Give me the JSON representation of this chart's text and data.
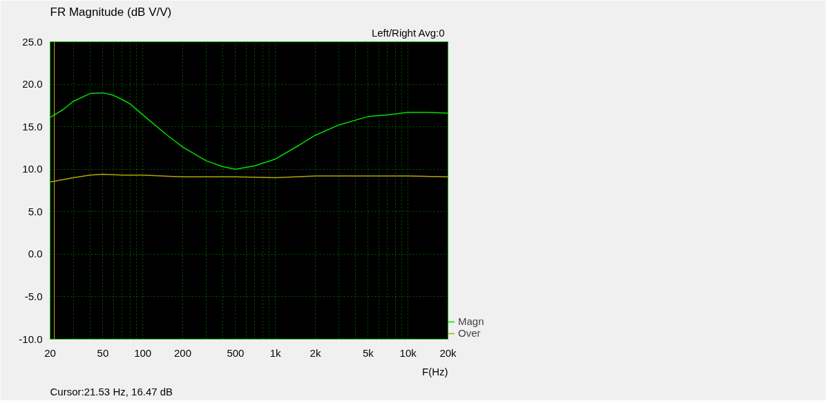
{
  "chart_data": {
    "type": "line",
    "title": "FR Magnitude (dB V/V)",
    "xlabel": "F(Hz)",
    "annotations": [
      "Left/Right  Avg:0",
      "Cursor:21.53 Hz, 16.47 dB"
    ],
    "log": "x",
    "grid": true,
    "legend": "bottom right",
    "marker": "none",
    "line_style": "solid",
    "xlim": [
      20,
      20000
    ],
    "ylim": [
      -10,
      25
    ],
    "xticks": [
      20,
      {
        "value": 30,
        "label": null
      },
      {
        "value": 40,
        "label": null
      },
      50,
      {
        "value": 60,
        "label": null
      },
      {
        "value": 70,
        "label": null
      },
      {
        "value": 80,
        "label": null
      },
      {
        "value": 90,
        "label": null
      },
      100,
      200,
      {
        "value": 300,
        "label": null
      },
      {
        "value": 400,
        "label": null
      },
      500,
      {
        "value": 600,
        "label": null
      },
      {
        "value": 700,
        "label": null
      },
      {
        "value": 800,
        "label": null
      },
      {
        "value": 900,
        "label": null
      },
      {
        "value": 1000,
        "label": "1k"
      },
      {
        "value": 2000,
        "label": "2k"
      },
      {
        "value": 3000,
        "label": null
      },
      {
        "value": 4000,
        "label": null
      },
      {
        "value": 5000,
        "label": "5k"
      },
      {
        "value": 6000,
        "label": null
      },
      {
        "value": 7000,
        "label": null
      },
      {
        "value": 8000,
        "label": null
      },
      {
        "value": 9000,
        "label": null
      },
      {
        "value": 10000,
        "label": "10k"
      },
      {
        "value": 20000,
        "label": "20k"
      }
    ],
    "yticks": [
      {
        "value": -10,
        "label": "-10.0"
      },
      {
        "value": -5,
        "label": "-5.0"
      },
      {
        "value": 0,
        "label": "0.0"
      },
      {
        "value": 5,
        "label": "5.0"
      },
      {
        "value": 10,
        "label": "10.0"
      },
      {
        "value": 15,
        "label": "15.0"
      },
      {
        "value": 20,
        "label": "20.0"
      },
      {
        "value": 25,
        "label": "25.0"
      }
    ],
    "ref_lines": [
      {
        "axis": "x",
        "value": 21.53,
        "color": "#c8b400"
      }
    ],
    "series": [
      {
        "name": "Over",
        "color": "#b4a800",
        "x": [
          20,
          30,
          40,
          50,
          70,
          100,
          200,
          500,
          1000,
          2000,
          5000,
          10000,
          20000
        ],
        "values": [
          8.5,
          9.0,
          9.3,
          9.4,
          9.3,
          9.3,
          9.1,
          9.1,
          9.0,
          9.2,
          9.2,
          9.2,
          9.1
        ]
      },
      {
        "name": "Magn",
        "color": "#00e000",
        "x": [
          20,
          25,
          30,
          40,
          50,
          60,
          70,
          80,
          100,
          150,
          200,
          300,
          400,
          500,
          700,
          1000,
          1500,
          2000,
          3000,
          5000,
          7000,
          10000,
          14000,
          20000
        ],
        "values": [
          16.1,
          17.0,
          18.0,
          18.9,
          19.0,
          18.7,
          18.2,
          17.7,
          16.4,
          14.1,
          12.6,
          11.0,
          10.3,
          10.0,
          10.4,
          11.2,
          12.8,
          14.0,
          15.2,
          16.2,
          16.4,
          16.7,
          16.7,
          16.6
        ]
      }
    ]
  }
}
